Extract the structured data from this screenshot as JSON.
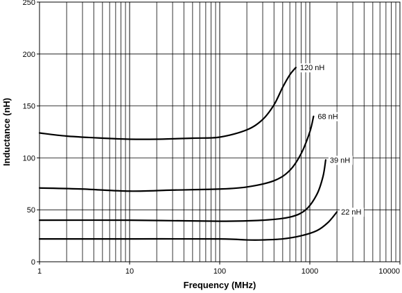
{
  "chart_data": {
    "type": "line",
    "title": "",
    "xlabel": "Frequency (MHz)",
    "ylabel": "Inductance (nH)",
    "xscale": "log",
    "xlim": [
      1,
      10000
    ],
    "ylim": [
      0,
      250
    ],
    "grid": true,
    "legend": "none",
    "x_tick_labels": [
      {
        "value": 1,
        "label": "1"
      },
      {
        "value": 10,
        "label": "10"
      },
      {
        "value": 100,
        "label": "100"
      },
      {
        "value": 1000,
        "label": "1000"
      },
      {
        "value": 10000,
        "label": "10000"
      }
    ],
    "y_tick_labels": [
      {
        "value": 0,
        "label": "0"
      },
      {
        "value": 50,
        "label": "50"
      },
      {
        "value": 100,
        "label": "100"
      },
      {
        "value": 150,
        "label": "150"
      },
      {
        "value": 200,
        "label": "200"
      },
      {
        "value": 250,
        "label": "250"
      }
    ],
    "series": [
      {
        "name": "120 nH",
        "x": [
          1,
          2,
          5,
          10,
          20,
          50,
          100,
          200,
          300,
          400,
          500,
          600,
          700
        ],
        "y": [
          124,
          121,
          119,
          118,
          118,
          119,
          120,
          127,
          137,
          151,
          168,
          180,
          187
        ]
      },
      {
        "name": "68 nH",
        "x": [
          1,
          3,
          10,
          30,
          100,
          200,
          400,
          600,
          800,
          1000,
          1100
        ],
        "y": [
          71,
          70,
          68,
          69,
          70,
          72,
          78,
          88,
          104,
          125,
          140
        ]
      },
      {
        "name": "39 nH",
        "x": [
          1,
          10,
          100,
          300,
          600,
          900,
          1200,
          1400,
          1500
        ],
        "y": [
          40,
          40,
          39,
          40,
          43,
          50,
          65,
          82,
          98
        ]
      },
      {
        "name": "22 nH",
        "x": [
          1,
          10,
          100,
          200,
          300,
          500,
          800,
          1200,
          1600,
          2000
        ],
        "y": [
          22,
          22,
          22,
          21,
          21,
          22,
          25,
          30,
          38,
          48
        ]
      }
    ]
  }
}
